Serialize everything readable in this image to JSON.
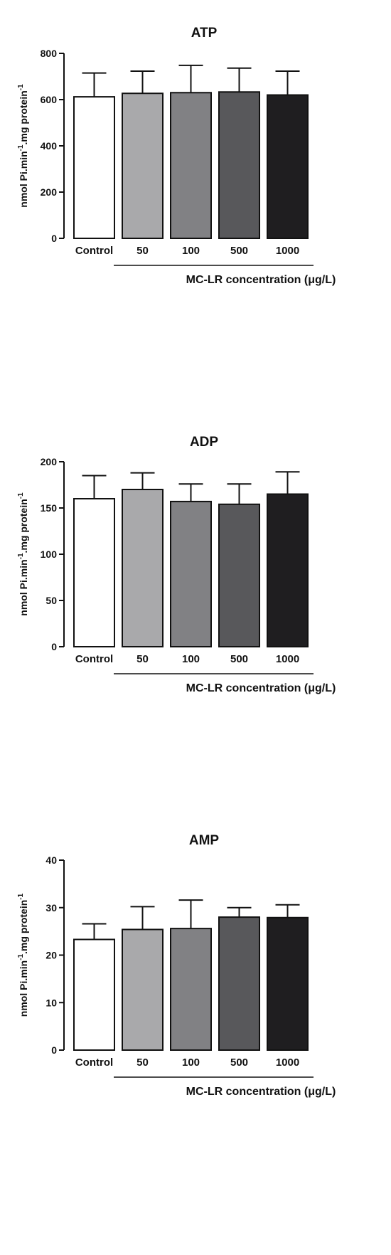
{
  "chart_data": [
    {
      "type": "bar",
      "title": "ATP",
      "ylabel_main": "nmol Pi.min",
      "ylabel_sup1": "-1",
      "ylabel_mid": ".mg protein",
      "ylabel_sup2": "-1",
      "xlabel": "MC-LR concentration (μg/L)",
      "categories": [
        "Control",
        "50",
        "100",
        "500",
        "1000"
      ],
      "values": [
        612,
        627,
        630,
        633,
        620
      ],
      "errors": [
        103,
        96,
        118,
        103,
        103
      ],
      "yticks": [
        0,
        200,
        400,
        600,
        800
      ],
      "ylim": [
        0,
        800
      ],
      "colors": [
        "#ffffff",
        "#a9a9ab",
        "#818184",
        "#58585b",
        "#1f1e20"
      ]
    },
    {
      "type": "bar",
      "title": "ADP",
      "ylabel_main": "nmol Pi.min",
      "ylabel_sup1": "-1",
      "ylabel_mid": ".mg protein",
      "ylabel_sup2": "-1",
      "xlabel": "MC-LR concentration (μg/L)",
      "categories": [
        "Control",
        "50",
        "100",
        "500",
        "1000"
      ],
      "values": [
        160,
        170,
        157,
        154,
        165
      ],
      "errors": [
        25,
        18,
        19,
        22,
        24
      ],
      "yticks": [
        0,
        50,
        100,
        150,
        200
      ],
      "ylim": [
        0,
        200
      ],
      "colors": [
        "#ffffff",
        "#a9a9ab",
        "#818184",
        "#58585b",
        "#1f1e20"
      ]
    },
    {
      "type": "bar",
      "title": "AMP",
      "ylabel_main": "nmol Pi.min",
      "ylabel_sup1": "-1",
      "ylabel_mid": ".mg protein",
      "ylabel_sup2": "-1",
      "xlabel": "MC-LR concentration (μg/L)",
      "categories": [
        "Control",
        "50",
        "100",
        "500",
        "1000"
      ],
      "values": [
        23.3,
        25.4,
        25.6,
        28.0,
        27.9
      ],
      "errors": [
        3.3,
        4.8,
        6.0,
        2.0,
        2.7
      ],
      "yticks": [
        0,
        10,
        20,
        30,
        40
      ],
      "ylim": [
        0,
        40
      ],
      "colors": [
        "#ffffff",
        "#a9a9ab",
        "#818184",
        "#58585b",
        "#1f1e20"
      ]
    }
  ]
}
